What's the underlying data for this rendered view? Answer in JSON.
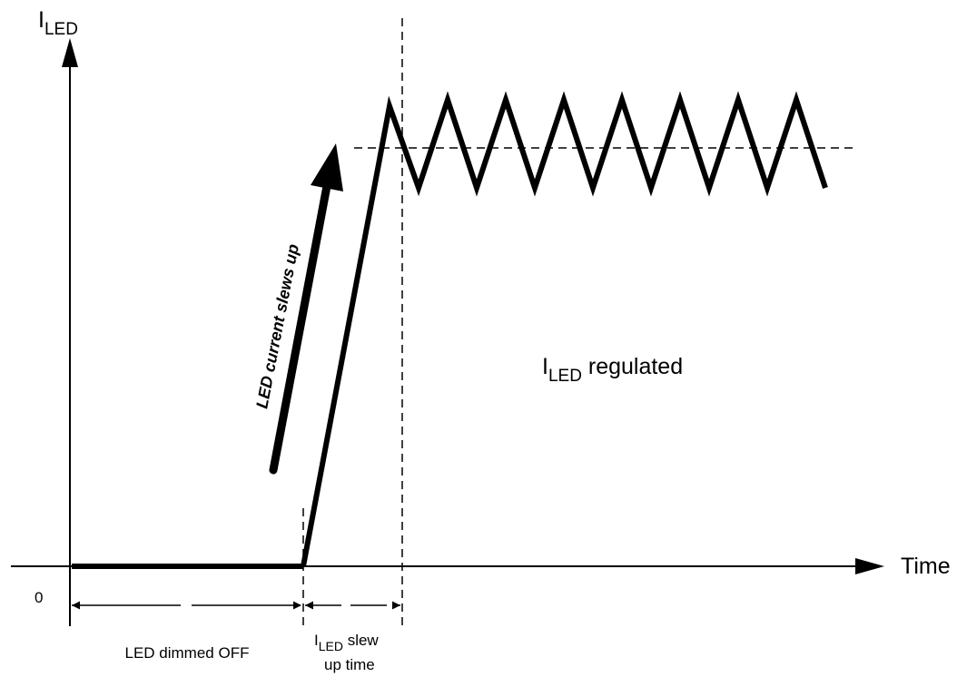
{
  "axis": {
    "y_label_main": "I",
    "y_label_sub": "LED",
    "x_label": "Time",
    "origin_label": "0"
  },
  "annotations": {
    "slew_arrow_text": "LED current slews up",
    "regulated_main": "I",
    "regulated_sub": "LED",
    "regulated_rest": " regulated",
    "dimmed_off": "LED dimmed OFF",
    "slew_time_main": "I",
    "slew_time_sub": "LED",
    "slew_time_rest": " slew",
    "slew_time_line2": "up time"
  },
  "colors": {
    "ink": "#000000",
    "background": "#ffffff"
  }
}
